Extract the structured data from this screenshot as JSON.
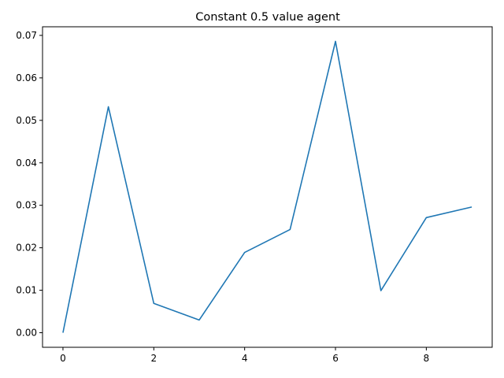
{
  "chart_data": {
    "type": "line",
    "title": "Constant 0.5 value agent",
    "xlabel": "",
    "ylabel": "",
    "xlim": [
      -0.45,
      9.45
    ],
    "ylim": [
      -0.00343,
      0.07203
    ],
    "x_ticks": [
      0,
      2,
      4,
      6,
      8
    ],
    "x_tick_labels": [
      "0",
      "2",
      "4",
      "6",
      "8"
    ],
    "y_ticks": [
      0.0,
      0.01,
      0.02,
      0.03,
      0.04,
      0.05,
      0.06,
      0.07
    ],
    "y_tick_labels": [
      "0.00",
      "0.01",
      "0.02",
      "0.03",
      "0.04",
      "0.05",
      "0.06",
      "0.07"
    ],
    "grid": false,
    "series": [
      {
        "color": "#1f77b4",
        "x": [
          0,
          1,
          2,
          3,
          4,
          5,
          6,
          7,
          8,
          9
        ],
        "values": [
          0.0,
          0.0532,
          0.0069,
          0.003,
          0.0189,
          0.0243,
          0.0686,
          0.0099,
          0.0271,
          0.0296
        ]
      }
    ]
  }
}
